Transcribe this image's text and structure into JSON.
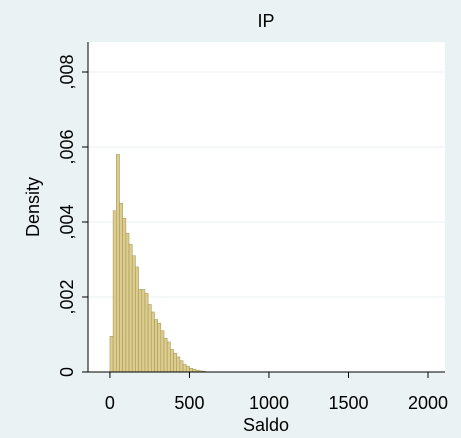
{
  "chart_data": {
    "type": "histogram",
    "title": "IP",
    "x_label": "Saldo",
    "y_label": "Density",
    "bins": [
      0,
      20,
      40,
      60,
      80,
      100,
      120,
      140,
      160,
      180,
      200,
      220,
      240,
      260,
      280,
      300,
      320,
      340,
      360,
      380,
      400,
      420,
      440,
      460,
      480,
      500,
      520,
      540,
      560,
      580,
      600
    ],
    "values": [
      0.00095,
      0.0043,
      0.0058,
      0.0045,
      0.0041,
      0.0037,
      0.0034,
      0.0031,
      0.0028,
      0.0022,
      0.0022,
      0.0021,
      0.0018,
      0.0016,
      0.0014,
      0.0013,
      0.0011,
      0.0009,
      0.0008,
      0.0006,
      0.0005,
      0.0004,
      0.0003,
      0.0002,
      0.00015,
      0.0001,
      7e-05,
      5e-05,
      3e-05,
      2e-05
    ],
    "color": "#dccd8f",
    "edge_color": "#a89a5a",
    "xlim": [
      -138,
      2107
    ],
    "xticks": [
      0,
      500,
      1000,
      1500,
      2000
    ],
    "ylim": [
      0,
      0.0088
    ],
    "yticks": [
      0,
      {
        "value": 0.002,
        "label": ",002"
      },
      {
        "value": 0.004,
        "label": ",004"
      },
      {
        "value": 0.006,
        "label": ",006"
      },
      {
        "value": 0.008,
        "label": ",008"
      }
    ],
    "grid": true
  }
}
